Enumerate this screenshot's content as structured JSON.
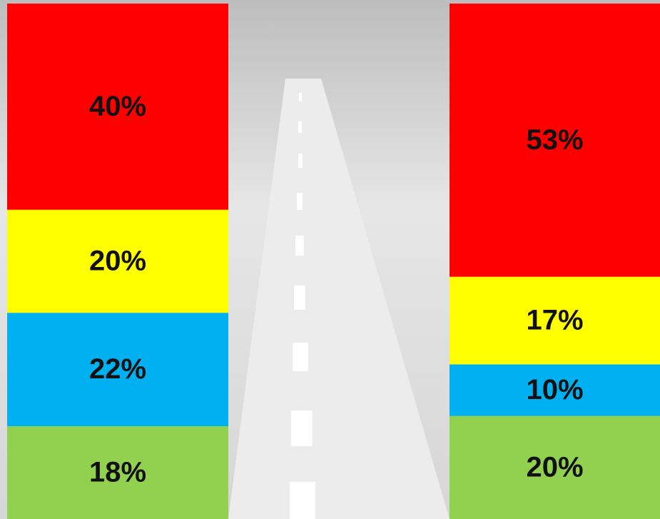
{
  "chart_data": {
    "type": "stacked-bar",
    "categories": [
      null,
      null
    ],
    "ylim": [
      0,
      100
    ],
    "series": [
      {
        "color": "#92d050",
        "values": [
          18,
          20
        ],
        "value_labels": [
          "18%",
          "20%"
        ]
      },
      {
        "color": "#00b0f0",
        "values": [
          22,
          10
        ],
        "value_labels": [
          "22%",
          "10%"
        ]
      },
      {
        "color": "#ffff00",
        "values": [
          20,
          17
        ],
        "value_labels": [
          "20%",
          "17%"
        ]
      },
      {
        "color": "#ff0000",
        "values": [
          40,
          53
        ],
        "value_labels": [
          "40%",
          "53%"
        ]
      }
    ]
  }
}
